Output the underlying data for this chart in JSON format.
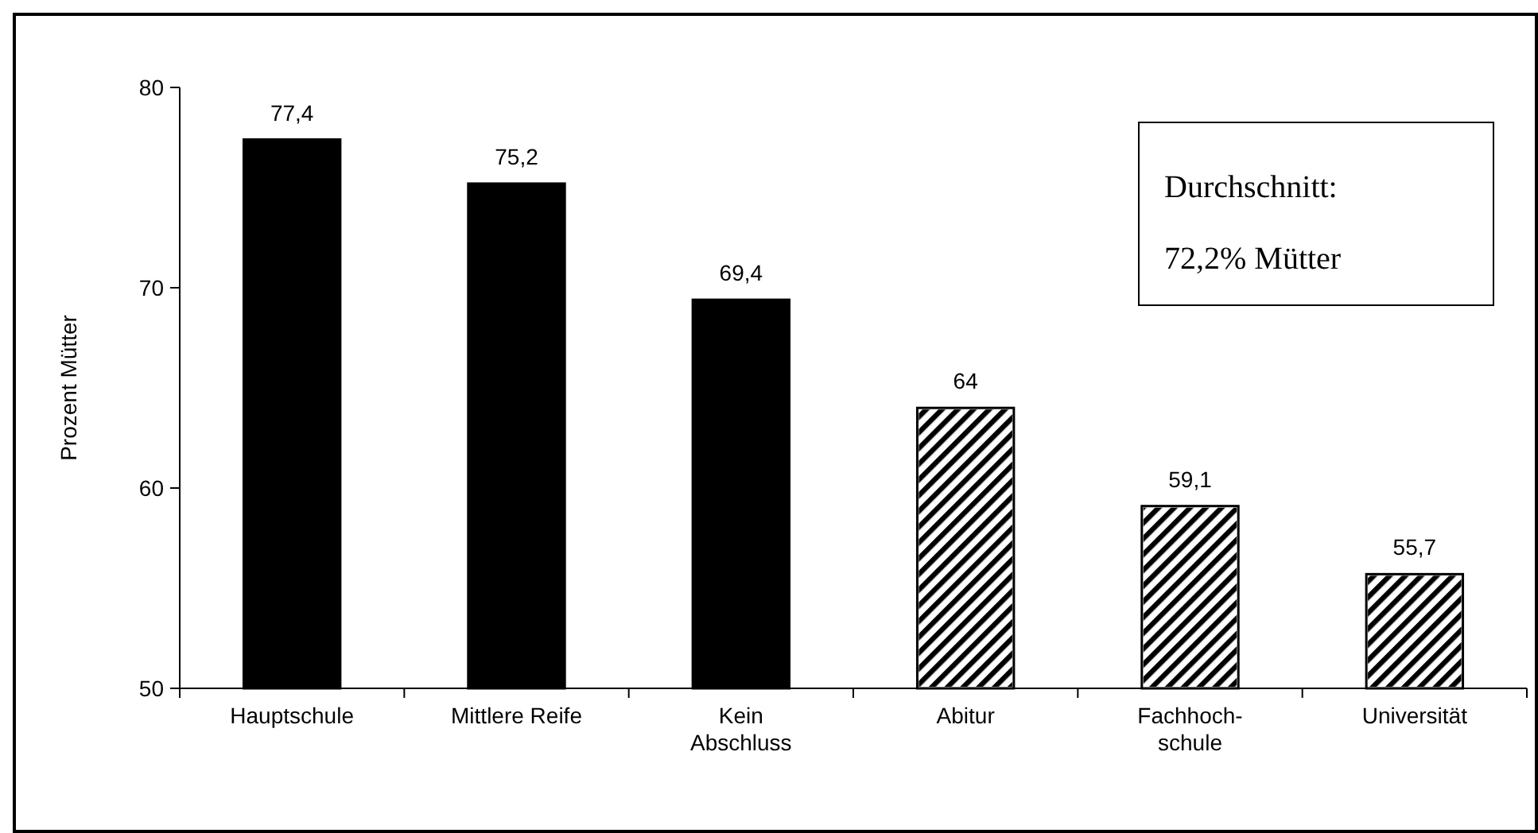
{
  "chart_data": {
    "type": "bar",
    "ylabel": "Prozent Mütter",
    "categories": [
      "Hauptschule",
      "Mittlere Reife",
      "Kein\nAbschluss",
      "Abitur",
      "Fachhoch-\nschule",
      "Universität"
    ],
    "values": [
      77.4,
      75.2,
      69.4,
      64,
      59.1,
      55.7
    ],
    "colors": [
      "#000000",
      "#000000",
      "#000000",
      "#ffffff",
      "#ffffff",
      "#ffffff"
    ],
    "value_labels": [
      "77,4",
      "75,2",
      "69,4",
      "64",
      "59,1",
      "55,7"
    ],
    "ylim": [
      50,
      80
    ],
    "yticks": [
      50,
      60,
      70,
      80
    ],
    "grid": false,
    "annotations": [
      "Durchschnitt:",
      "72,2% Mütter"
    ]
  }
}
